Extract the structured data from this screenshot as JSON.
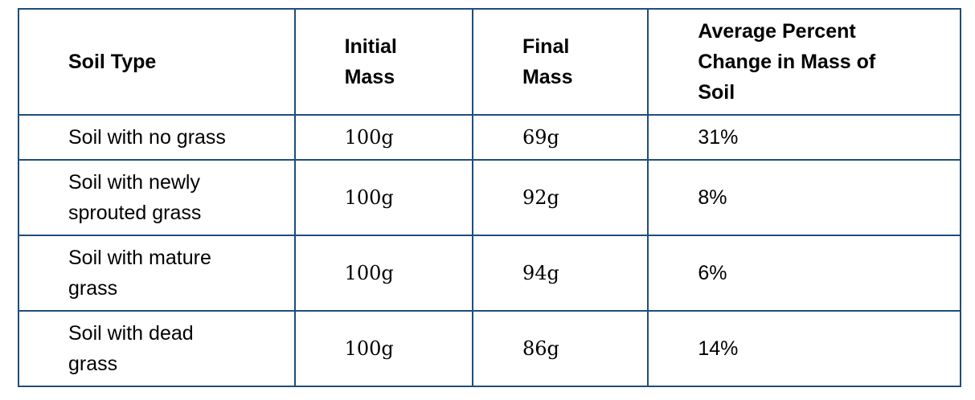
{
  "table": {
    "headers": [
      "Soil Type",
      "Initial Mass",
      "Final Mass",
      "Average Percent Change in Mass of Soil"
    ],
    "header_lines": [
      [
        "Soil Type"
      ],
      [
        "Initial",
        "Mass"
      ],
      [
        "Final",
        "Mass"
      ],
      [
        "Average Percent",
        "Change in Mass of",
        "Soil"
      ]
    ],
    "rows": [
      {
        "soil_type_lines": [
          "Soil with no grass"
        ],
        "initial_mass": "100g",
        "final_mass": "69g",
        "percent_change": "31%"
      },
      {
        "soil_type_lines": [
          "Soil with newly",
          "sprouted grass"
        ],
        "initial_mass": "100g",
        "final_mass": "92g",
        "percent_change": "8%"
      },
      {
        "soil_type_lines": [
          "Soil with mature",
          "grass"
        ],
        "initial_mass": "100g",
        "final_mass": "94g",
        "percent_change": "6%"
      },
      {
        "soil_type_lines": [
          "Soil with dead",
          "grass"
        ],
        "initial_mass": "100g",
        "final_mass": "86g",
        "percent_change": "14%"
      }
    ]
  },
  "colors": {
    "border": "#1f4e79",
    "text": "#000000",
    "background": "#ffffff"
  }
}
